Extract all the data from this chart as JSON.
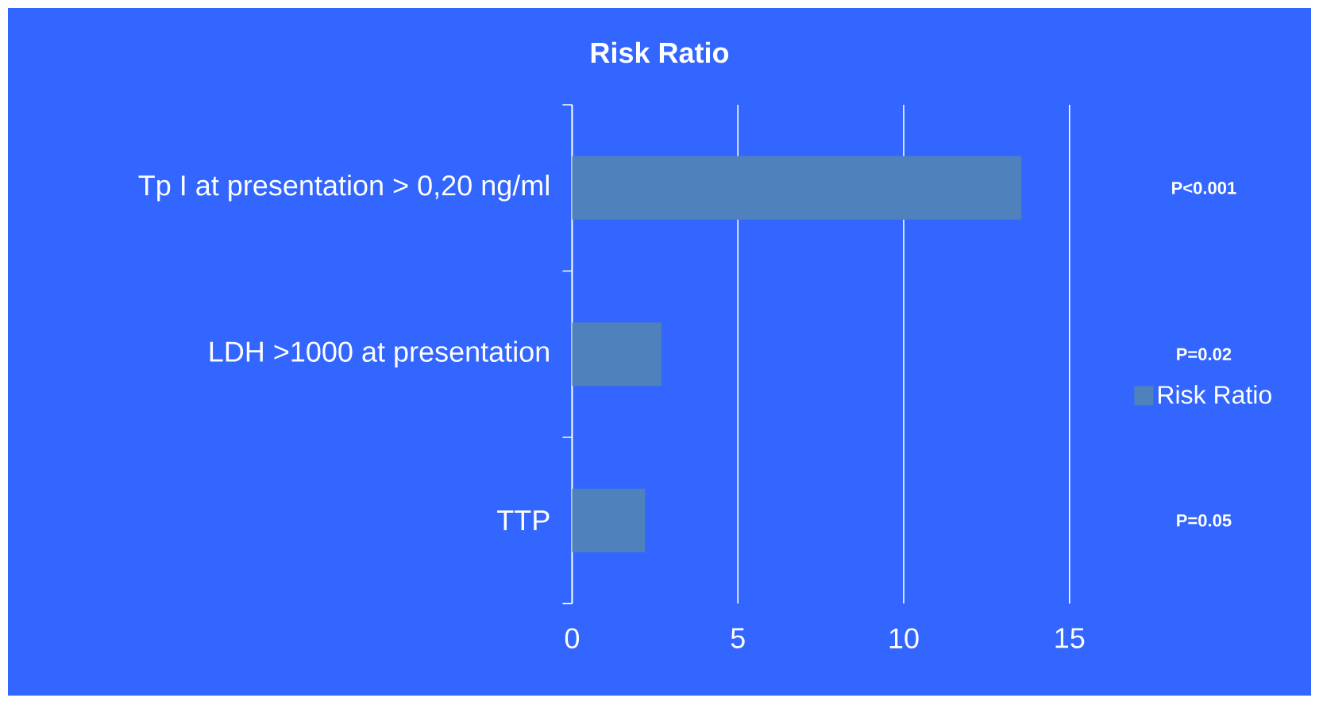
{
  "chart_data": {
    "type": "bar",
    "orientation": "horizontal",
    "title": "Risk Ratio",
    "categories": [
      "Tp I at presentation > 0,20 ng/ml",
      "LDH >1000 at presentation",
      "TTP"
    ],
    "series": [
      {
        "name": "Risk Ratio",
        "color": "#4f81bd",
        "values": [
          13.55,
          2.7,
          2.2
        ]
      }
    ],
    "xlim": [
      0,
      15
    ],
    "xticks": [
      0,
      5,
      10,
      15
    ],
    "grid": "x",
    "legend": "right",
    "annotations": [
      "P<0.001",
      "P=0.02",
      "P=0.05"
    ]
  }
}
